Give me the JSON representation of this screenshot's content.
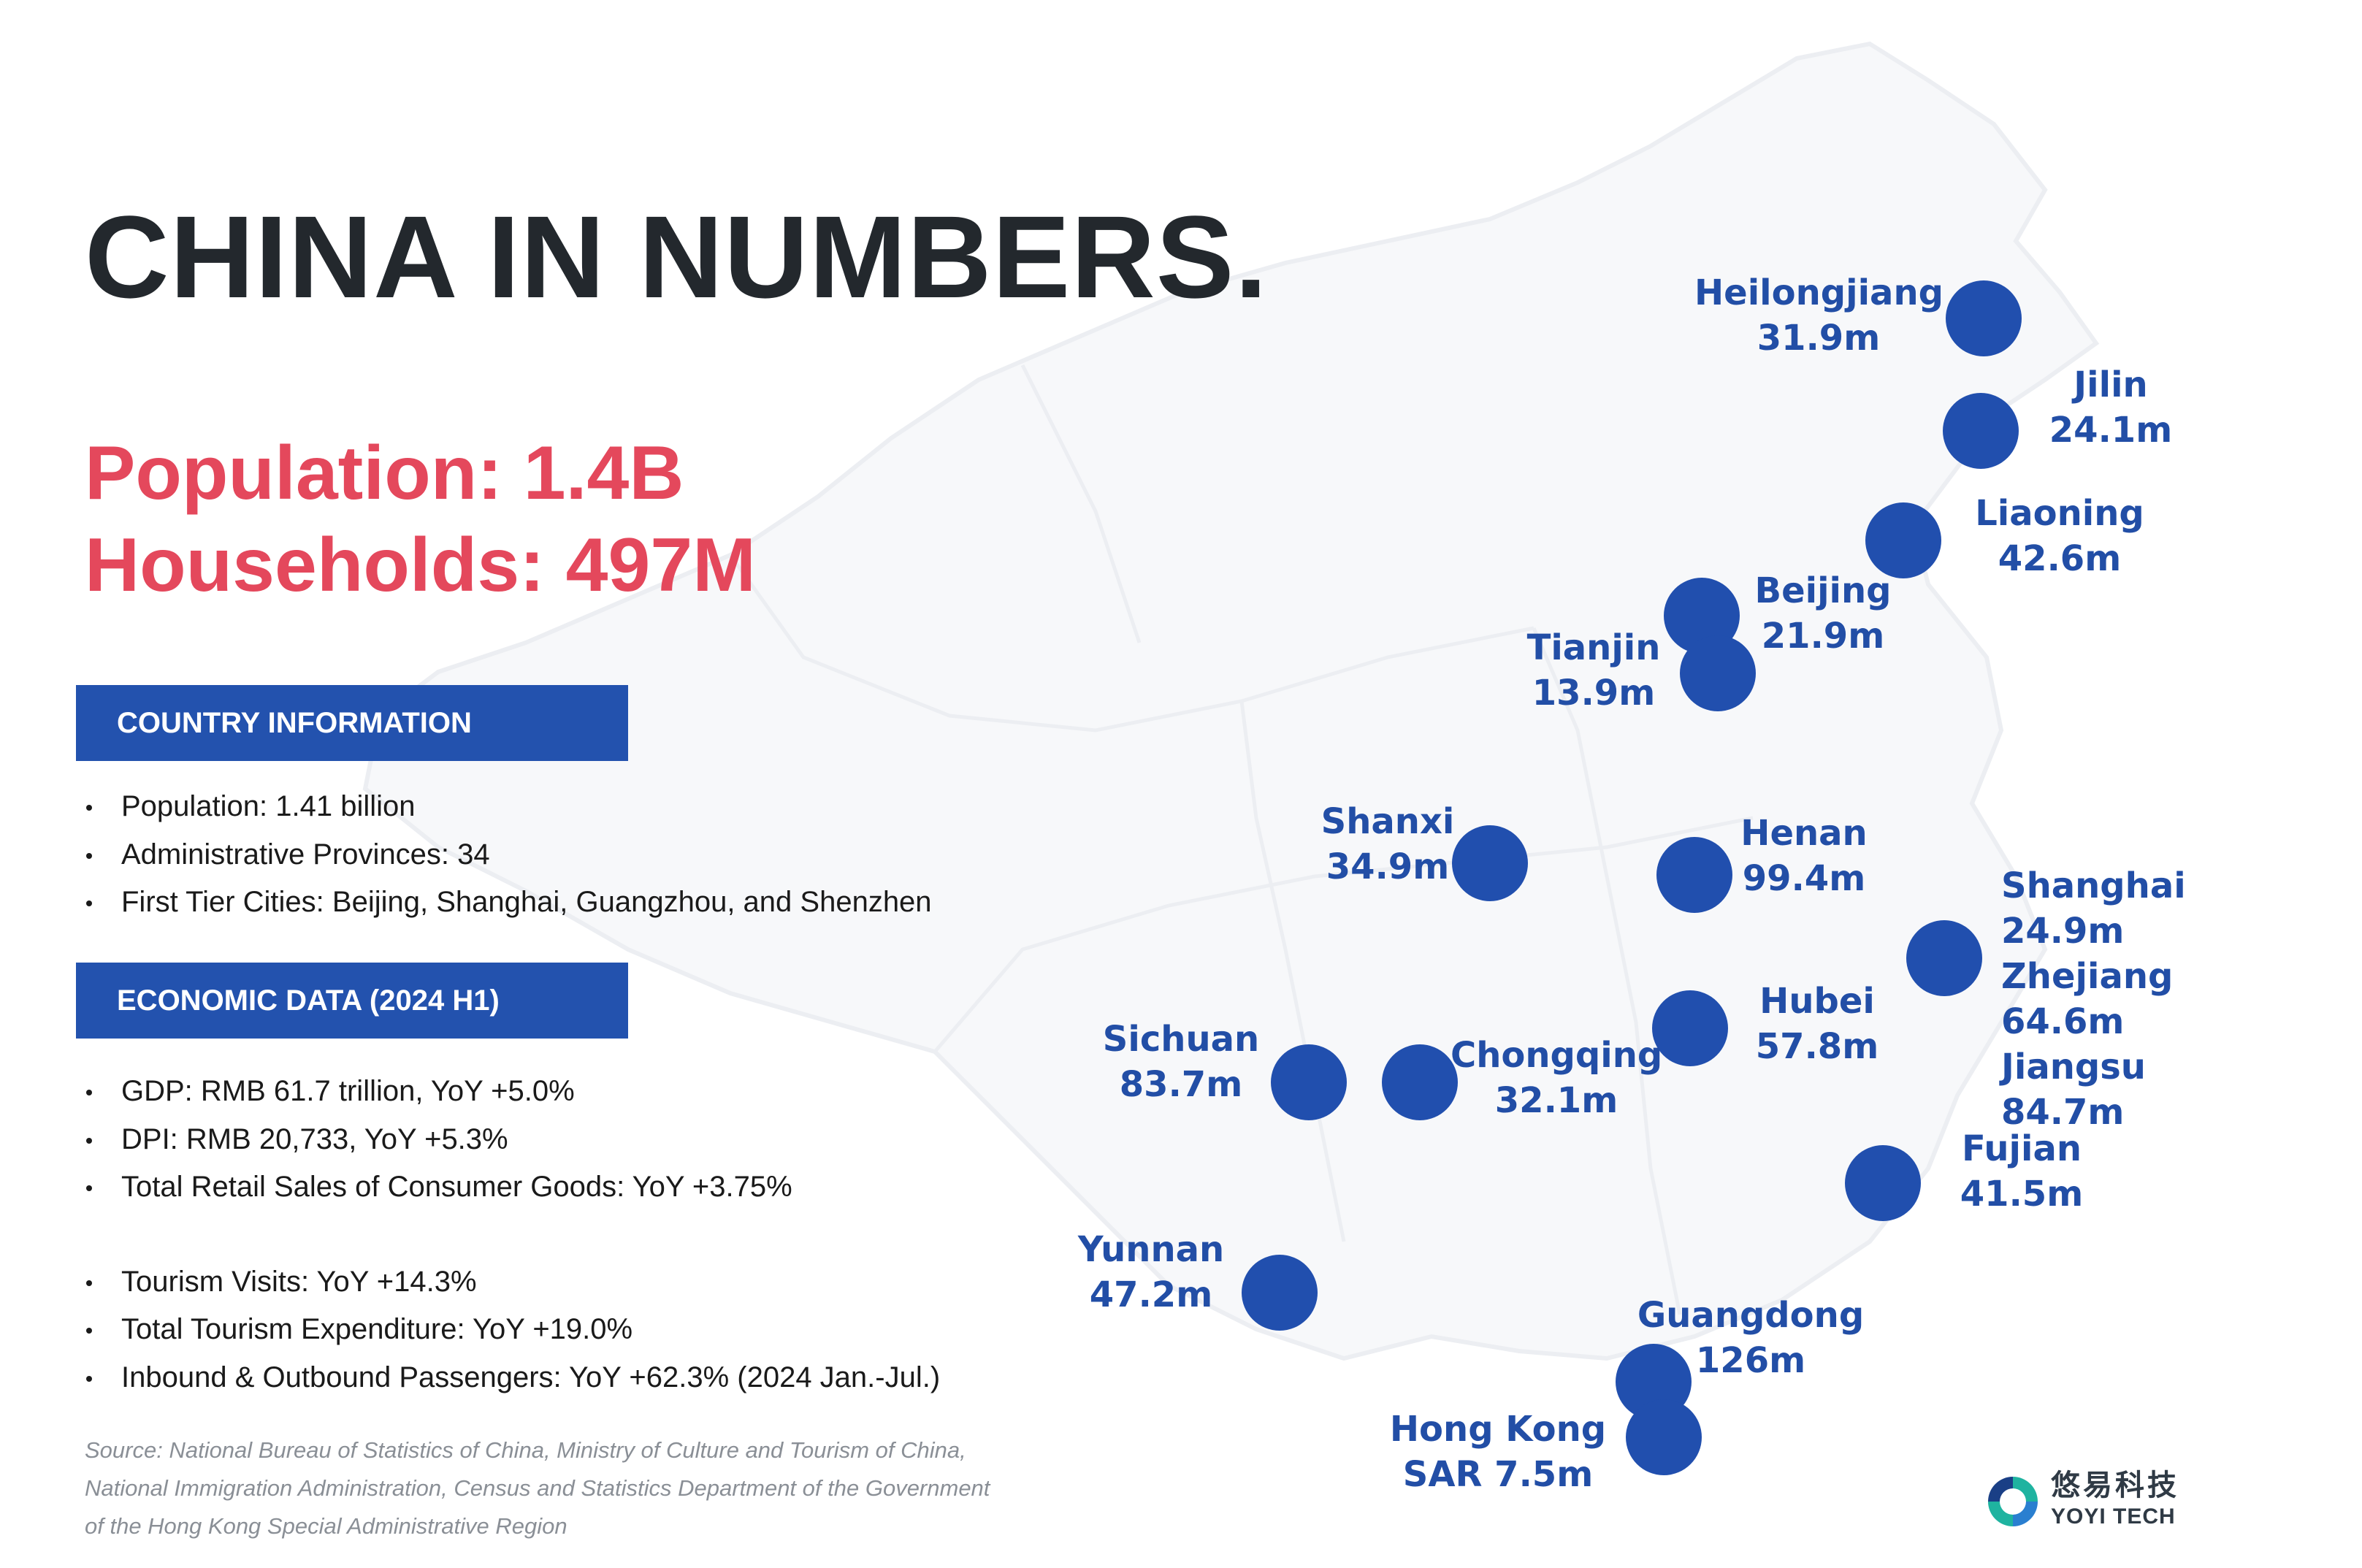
{
  "title": "CHINA IN NUMBERS.",
  "headline": {
    "population": "Population: 1.4B",
    "households": "Households: 497M"
  },
  "country_information": {
    "heading": "COUNTRY INFORMATION",
    "items": [
      "Population: 1.41 billion",
      "Administrative Provinces: 34",
      "First Tier Cities: Beijing, Shanghai, Guangzhou, and Shenzhen"
    ]
  },
  "economic_data": {
    "heading": "ECONOMIC DATA (2024 H1)",
    "items": [
      "GDP: RMB 61.7 trillion, YoY +5.0%",
      "DPI: RMB 20,733, YoY +5.3%",
      "Total Retail Sales of Consumer Goods: YoY +3.75%",
      "Tourism Visits: YoY +14.3%",
      "Total Tourism Expenditure: YoY +19.0%",
      "Inbound & Outbound Passengers: YoY +62.3% (2024 Jan.-Jul.)"
    ]
  },
  "source": {
    "lines": [
      "Source: National Bureau of Statistics of China, Ministry of Culture and Tourism of China,",
      "National Immigration Administration, Census and Statistics Department of the Government",
      "of the Hong Kong Special Administrative Region"
    ]
  },
  "regions": [
    {
      "name": "Heilongjiang",
      "value": "31.9m"
    },
    {
      "name": "Jilin",
      "value": "24.1m"
    },
    {
      "name": "Liaoning",
      "value": "42.6m"
    },
    {
      "name": "Beijing",
      "value": "21.9m"
    },
    {
      "name": "Tianjin",
      "value": "13.9m"
    },
    {
      "name": "Shanxi",
      "value": "34.9m"
    },
    {
      "name": "Henan",
      "value": "99.4m"
    },
    {
      "name": "Shanghai",
      "value": "24.9m"
    },
    {
      "name": "Zhejiang",
      "value": "64.6m"
    },
    {
      "name": "Jiangsu",
      "value": "84.7m"
    },
    {
      "name": "Hubei",
      "value": "57.8m"
    },
    {
      "name": "Sichuan",
      "value": "83.7m"
    },
    {
      "name": "Chongqing",
      "value": "32.1m"
    },
    {
      "name": "Fujian",
      "value": "41.5m"
    },
    {
      "name": "Yunnan",
      "value": "47.2m"
    },
    {
      "name": "Guangdong",
      "value": "126m"
    },
    {
      "name": "Hong Kong SAR",
      "line1": "Hong Kong",
      "line2": "SAR 7.5m"
    }
  ],
  "logo": {
    "name_cn": "悠易科技",
    "name_en": "YOYI TECH"
  },
  "colors": {
    "title": "#23282d",
    "headline": "#e4485c",
    "section_bar": "#2352ae",
    "marker": "#214fae",
    "label": "#224ea6",
    "source": "#8a8f96"
  }
}
